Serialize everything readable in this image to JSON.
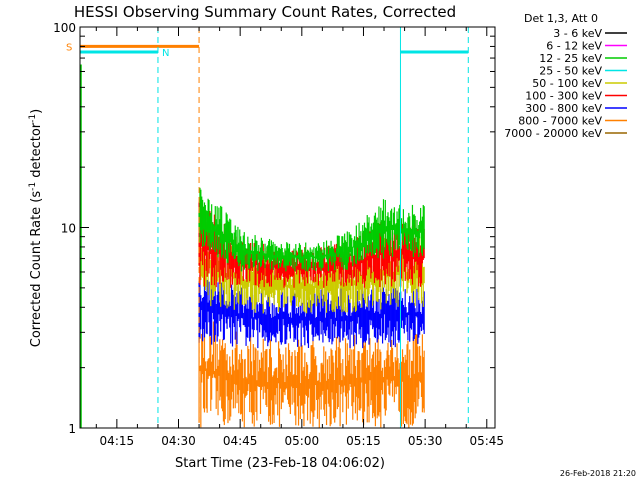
{
  "chart_data": {
    "type": "line",
    "title": "HESSI Observing Summary Count Rates, Corrected",
    "xlabel": "Start Time (23-Feb-18 04:06:02)",
    "ylabel": "Corrected Count Rate (s⁻¹ detector⁻¹)",
    "ylabel_parts": {
      "main": "Corrected Count Rate (s",
      "sup1": "-1",
      "mid": " detector",
      "sup2": "-1",
      "end": ")"
    },
    "y_scale": "log",
    "ylim": [
      1,
      100
    ],
    "xlim": [
      "04:06:02",
      "05:47:00"
    ],
    "x_ticks": [
      "04:15",
      "04:30",
      "04:45",
      "05:00",
      "05:15",
      "05:30",
      "05:45"
    ],
    "y_ticks": [
      "1",
      "10",
      "100"
    ],
    "legend_title": "Det 1,3, Att 0",
    "series": [
      {
        "name": "3 - 6 keV",
        "color": "#000000"
      },
      {
        "name": "6 - 12 keV",
        "color": "#ff00ff"
      },
      {
        "name": "12 - 25 keV",
        "color": "#00cc00"
      },
      {
        "name": "25 - 50 keV",
        "color": "#00e5e5"
      },
      {
        "name": "50 - 100 keV",
        "color": "#cccc00"
      },
      {
        "name": "100 - 300 keV",
        "color": "#ff0000"
      },
      {
        "name": "300 - 800 keV",
        "color": "#0000ff"
      },
      {
        "name": "800 - 7000 keV",
        "color": "#ff8000"
      },
      {
        "name": "7000 - 20000 keV",
        "color": "#996600"
      }
    ],
    "flags": [
      {
        "label": "S",
        "color": "#ff8000",
        "value": 80,
        "segments": [
          [
            "04:06:02",
            "04:35:00"
          ]
        ]
      },
      {
        "label": "N",
        "color": "#00e5e5",
        "value": 75,
        "segments": [
          [
            "04:06:02",
            "04:25:00"
          ],
          [
            "05:24:00",
            "05:40:30"
          ]
        ]
      }
    ],
    "vlines": [
      {
        "time": "04:25:00",
        "color": "#00e5e5",
        "style": "dashed"
      },
      {
        "time": "04:35:00",
        "color": "#ff8000",
        "style": "dashed"
      },
      {
        "time": "05:24:00",
        "color": "#00e5e5",
        "style": "solid"
      },
      {
        "time": "05:40:30",
        "color": "#00e5e5",
        "style": "dashed"
      }
    ],
    "envelopes": [
      {
        "series": "800 - 7000 keV",
        "color": "#ff8000",
        "t": [
          "04:35",
          "04:40",
          "04:45",
          "04:50",
          "04:55",
          "05:00",
          "05:05",
          "05:10",
          "05:15",
          "05:20",
          "05:25",
          "05:30"
        ],
        "low": [
          1,
          1,
          1,
          1,
          1,
          1,
          1,
          1,
          1,
          1,
          1,
          1
        ],
        "high": [
          4,
          3.3,
          3,
          2.9,
          2.8,
          2.8,
          2.8,
          2.9,
          3,
          3.1,
          3.0,
          3.0
        ]
      },
      {
        "series": "300 - 800 keV",
        "color": "#0000ff",
        "t": [
          "04:35",
          "04:40",
          "04:45",
          "04:50",
          "04:55",
          "05:00",
          "05:05",
          "05:10",
          "05:15",
          "05:20",
          "05:25",
          "05:30"
        ],
        "low": [
          2.6,
          2.6,
          2.5,
          2.5,
          2.5,
          2.5,
          2.5,
          2.5,
          2.5,
          2.5,
          2.5,
          2.5
        ],
        "high": [
          6,
          5.5,
          5.2,
          5,
          5,
          5,
          5,
          5,
          5.2,
          5.5,
          5.5,
          5.5
        ]
      },
      {
        "series": "50 - 100 keV",
        "color": "#cccc00",
        "t": [
          "04:35",
          "04:40",
          "04:45",
          "04:50",
          "04:55",
          "05:00",
          "05:05",
          "05:10",
          "05:15",
          "05:20",
          "05:25",
          "05:30"
        ],
        "low": [
          4,
          4,
          3.8,
          3.7,
          3.7,
          3.7,
          3.7,
          3.7,
          3.8,
          3.9,
          4,
          4
        ],
        "high": [
          11,
          9,
          8,
          7.5,
          7,
          7,
          7,
          7.5,
          8,
          9,
          9,
          9
        ]
      },
      {
        "series": "100 - 300 keV",
        "color": "#ff0000",
        "t": [
          "04:35",
          "04:40",
          "04:45",
          "04:50",
          "04:55",
          "05:00",
          "05:05",
          "05:10",
          "05:15",
          "05:20",
          "05:25",
          "05:30"
        ],
        "low": [
          5,
          5,
          5,
          5,
          5,
          5,
          5,
          5,
          5,
          5,
          5,
          5
        ],
        "high": [
          14,
          11,
          9,
          8.5,
          8,
          8,
          8,
          8.5,
          9.5,
          11,
          11,
          11
        ]
      },
      {
        "series": "12 - 25 keV",
        "color": "#00cc00",
        "t": [
          "04:35",
          "04:40",
          "04:45",
          "04:50",
          "04:55",
          "05:00",
          "05:05",
          "05:10",
          "05:15",
          "05:20",
          "05:25",
          "05:30"
        ],
        "low": [
          8,
          7,
          6,
          6,
          6,
          6,
          6,
          6,
          6.5,
          7,
          7,
          7
        ],
        "high": [
          16,
          13,
          10,
          9,
          8.5,
          8.5,
          8.5,
          9.5,
          11,
          14,
          13,
          13
        ]
      }
    ]
  },
  "footer_date": "26-Feb-2018 21:20"
}
